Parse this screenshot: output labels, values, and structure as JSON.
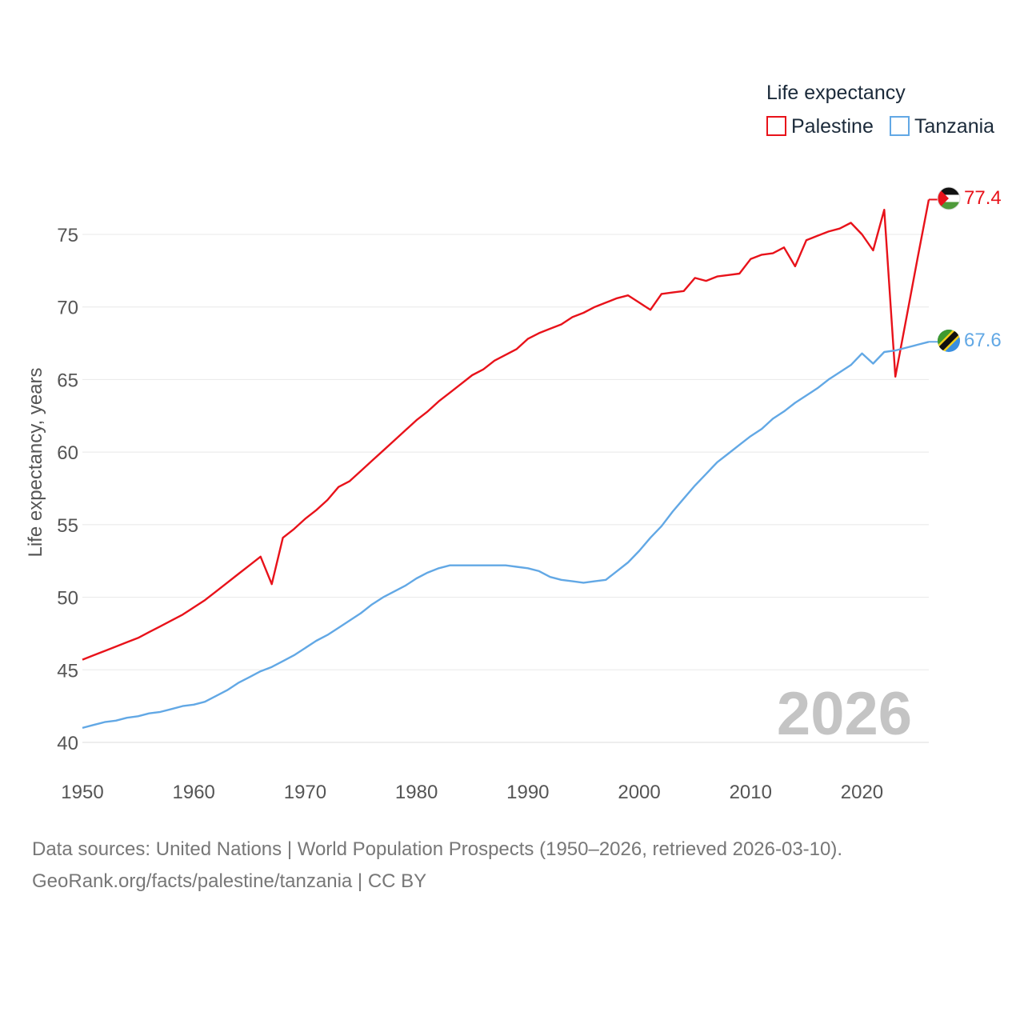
{
  "chart_data": {
    "type": "line",
    "legend_title": "Life expectancy",
    "ylabel": "Life expectancy, years",
    "xlabel": "",
    "xlim": [
      1950,
      2026
    ],
    "ylim": [
      40,
      78
    ],
    "yticks": [
      40,
      45,
      50,
      55,
      60,
      65,
      70,
      75
    ],
    "xticks": [
      1950,
      1960,
      1970,
      1980,
      1990,
      2000,
      2010,
      2020
    ],
    "watermark_year": "2026",
    "x": [
      1950,
      1951,
      1952,
      1953,
      1954,
      1955,
      1956,
      1957,
      1958,
      1959,
      1960,
      1961,
      1962,
      1963,
      1964,
      1965,
      1966,
      1967,
      1968,
      1969,
      1970,
      1971,
      1972,
      1973,
      1974,
      1975,
      1976,
      1977,
      1978,
      1979,
      1980,
      1981,
      1982,
      1983,
      1984,
      1985,
      1986,
      1987,
      1988,
      1989,
      1990,
      1991,
      1992,
      1993,
      1994,
      1995,
      1996,
      1997,
      1998,
      1999,
      2000,
      2001,
      2002,
      2003,
      2004,
      2005,
      2006,
      2007,
      2008,
      2009,
      2010,
      2011,
      2012,
      2013,
      2014,
      2015,
      2016,
      2017,
      2018,
      2019,
      2020,
      2021,
      2022,
      2023,
      2024,
      2025,
      2026
    ],
    "series": [
      {
        "name": "Palestine",
        "color": "#e8121a",
        "end_label": "77.4",
        "flag": "palestine-flag",
        "values": [
          45.7,
          46.0,
          46.3,
          46.6,
          46.9,
          47.2,
          47.6,
          48.0,
          48.4,
          48.8,
          49.3,
          49.8,
          50.4,
          51.0,
          51.6,
          52.2,
          52.8,
          50.9,
          54.1,
          54.7,
          55.4,
          56.0,
          56.7,
          57.6,
          58.0,
          58.7,
          59.4,
          60.1,
          60.8,
          61.5,
          62.2,
          62.8,
          63.5,
          64.1,
          64.7,
          65.3,
          65.7,
          66.3,
          66.7,
          67.1,
          67.8,
          68.2,
          68.5,
          68.8,
          69.3,
          69.6,
          70.0,
          70.3,
          70.6,
          70.8,
          70.3,
          69.8,
          70.9,
          71.0,
          71.1,
          72.0,
          71.8,
          72.1,
          72.2,
          72.3,
          73.3,
          73.6,
          73.7,
          74.1,
          72.8,
          74.6,
          74.9,
          75.2,
          75.4,
          75.8,
          75.0,
          73.9,
          76.7,
          65.2,
          69.3,
          73.4,
          77.4
        ]
      },
      {
        "name": "Tanzania",
        "color": "#62a8e5",
        "end_label": "67.6",
        "flag": "tanzania-flag",
        "values": [
          41.0,
          41.2,
          41.4,
          41.5,
          41.7,
          41.8,
          42.0,
          42.1,
          42.3,
          42.5,
          42.6,
          42.8,
          43.2,
          43.6,
          44.1,
          44.5,
          44.9,
          45.2,
          45.6,
          46.0,
          46.5,
          47.0,
          47.4,
          47.9,
          48.4,
          48.9,
          49.5,
          50.0,
          50.4,
          50.8,
          51.3,
          51.7,
          52.0,
          52.2,
          52.2,
          52.2,
          52.2,
          52.2,
          52.2,
          52.1,
          52.0,
          51.8,
          51.4,
          51.2,
          51.1,
          51.0,
          51.1,
          51.2,
          51.8,
          52.4,
          53.2,
          54.1,
          54.9,
          55.9,
          56.8,
          57.7,
          58.5,
          59.3,
          59.9,
          60.5,
          61.1,
          61.6,
          62.3,
          62.8,
          63.4,
          63.9,
          64.4,
          65.0,
          65.5,
          66.0,
          66.8,
          66.1,
          66.9,
          67.0,
          67.2,
          67.4,
          67.6
        ]
      }
    ]
  },
  "footer": {
    "sources": "Data sources: United Nations | World Population Prospects (1950–2026, retrieved 2026-03-10).",
    "credit": "GeoRank.org/facts/palestine/tanzania | CC BY"
  }
}
